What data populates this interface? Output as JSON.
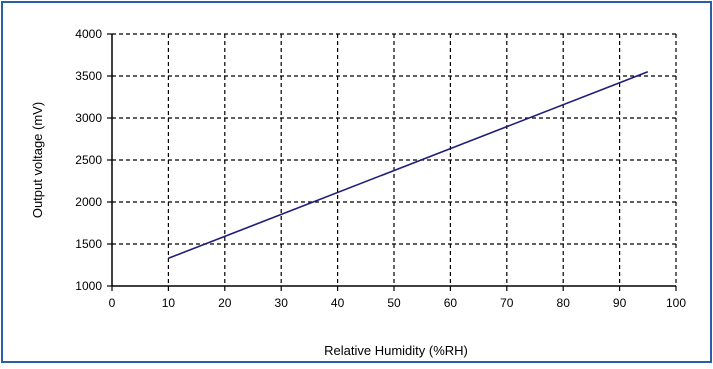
{
  "chart_data": {
    "type": "line",
    "title": "",
    "xlabel": "Relative Humidity (%RH)",
    "ylabel": "Output voltage (mV)",
    "xlim": [
      0,
      100
    ],
    "ylim": [
      1000,
      4000
    ],
    "x_ticks": [
      0,
      10,
      20,
      30,
      40,
      50,
      60,
      70,
      80,
      90,
      100
    ],
    "y_ticks": [
      1000,
      1500,
      2000,
      2500,
      3000,
      3500,
      4000
    ],
    "x_tick_labels": [
      "0",
      "10",
      "20",
      "30",
      "40",
      "50",
      "60",
      "70",
      "80",
      "90",
      "100"
    ],
    "y_tick_labels": [
      "1000",
      "1500",
      "2000",
      "2500",
      "3000",
      "3500",
      "4000"
    ],
    "grid": true,
    "grid_style": "dashed",
    "legend": false,
    "series": [
      {
        "x": [
          10,
          95
        ],
        "y": [
          1330,
          3550
        ],
        "color": "#1f1f7a"
      }
    ]
  },
  "colors": {
    "frame_border": "#2b5ea8",
    "axis": "#000000",
    "grid": "#000000",
    "line": "#1f1f7a"
  }
}
